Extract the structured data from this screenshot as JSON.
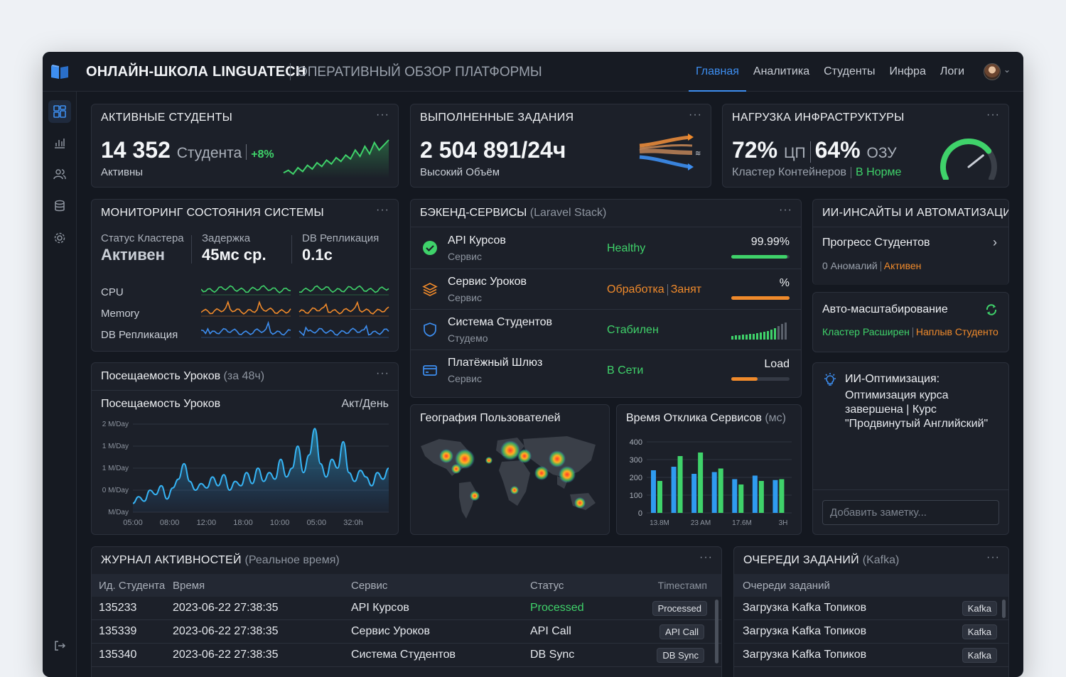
{
  "header": {
    "title": "ОНЛАЙН-ШКОЛА LINGUATECH",
    "subtitle": "ОПЕРАТИВНЫЙ ОБЗОР ПЛАТФОРМЫ",
    "nav": [
      "Главная",
      "Аналитика",
      "Студенты",
      "Инфра",
      "Логи"
    ],
    "active_nav": "Главная"
  },
  "sidebar": {
    "icons": [
      "dashboard-icon",
      "bar-chart-icon",
      "users-icon",
      "database-icon",
      "gear-icon",
      "logout-icon"
    ]
  },
  "kpi_students": {
    "title": "АКТИВНЫЕ СТУДЕНТЫ",
    "value": "14 352",
    "unit": "Студента",
    "change": "+8%",
    "status": "Активны",
    "sparkline": [
      12,
      14,
      11,
      16,
      13,
      18,
      15,
      20,
      17,
      22,
      19,
      24,
      21,
      26,
      23,
      30,
      25,
      33,
      27,
      36,
      30,
      34,
      38
    ]
  },
  "kpi_tasks": {
    "title": "ВЫПОЛНЕННЫЕ ЗАДАНИЯ",
    "value": "2 504 891/24ч",
    "status": "Высокий Объём"
  },
  "kpi_infra": {
    "title": "НАГРУЗКА ИНФРАСТРУКТУРЫ",
    "cpu_value": "72%",
    "cpu_unit": "ЦП",
    "ram_value": "64%",
    "ram_unit": "ОЗУ",
    "cluster": "Кластер Контейнеров",
    "status": "В Норме",
    "gauge_level": 0.72
  },
  "monitor": {
    "title": "МОНИТОРИНГ СОСТОЯНИЯ СИСТЕМЫ",
    "stats": [
      {
        "label": "Статус Кластера",
        "value": "Активен"
      },
      {
        "label": "Задержка",
        "value": "45мс ср."
      },
      {
        "label": "DB Репликация",
        "value": "0.1с"
      }
    ],
    "rows": [
      "CPU",
      "Memory",
      "DB Репликация"
    ]
  },
  "backend": {
    "title": "БЭКЕНД-СЕРВИСЫ",
    "title_note": "(Laravel Stack)",
    "services": [
      {
        "name": "API Курсов",
        "sub": "Сервис",
        "status": "Healthy",
        "value": "99.99%",
        "level": 0.96,
        "color": "#3fd26a"
      },
      {
        "name": "Сервис Уроков",
        "sub": "Сервис",
        "status_a": "Обработка",
        "status_b": "Занят",
        "value": "%",
        "level": 1.0,
        "color": "#f08a2b"
      },
      {
        "name": "Система Студентов",
        "sub": "Студемо",
        "status": "Стабилен",
        "value": "",
        "level": 0.0,
        "color": "#3fd26a"
      },
      {
        "name": "Платёжный Шлюз",
        "sub": "Сервис",
        "status": "В Сети",
        "value": "Load",
        "level": 0.45,
        "color": "#f08a2b"
      }
    ]
  },
  "ai": {
    "title": "ИИ-ИНСАЙТЫ И АВТОМАТИЗАЦИ",
    "progress_title": "Прогресс Студентов",
    "anomalies": "0 Аномалий",
    "anomalies_status": "Активен",
    "autoscale_title": "Авто-масштабирование",
    "autoscale_a": "Кластер Расширен",
    "autoscale_b": "Наплыв Студенто",
    "opt_title": "ИИ-Оптимизация:",
    "opt_text": "Оптимизация курса завершена | Курс \"Продвинутый Английский\"",
    "note_placeholder": "Добавить заметку..."
  },
  "attendance": {
    "title": "Посещаемость Уроков",
    "title_note": "(за 48ч)",
    "inner_title": "Посещаемость Уроков",
    "unit_label": "Акт/День"
  },
  "geo": {
    "title": "География Пользователей"
  },
  "response": {
    "title": "Время Отклика Сервисов",
    "title_note": "(мс)"
  },
  "activity": {
    "title": "ЖУРНАЛ АКТИВНОСТЕЙ",
    "title_note": "(Реальное время)",
    "columns": [
      "Ид. Студента",
      "Время",
      "Сервис",
      "Статус",
      "Тimестамп"
    ],
    "rows": [
      {
        "id": "135233",
        "time": "2023-06-22 27:38:35",
        "service": "API Курсов",
        "status": "Processed",
        "badge": "Processed",
        "status_color": "#3fd26a"
      },
      {
        "id": "135339",
        "time": "2023-06-22 27:38:35",
        "service": "Сервис Уроков",
        "status": "API Call",
        "badge": "API Call",
        "status_color": "#3d8ef0"
      },
      {
        "id": "135340",
        "time": "2023-06-22 27:38:35",
        "service": "Система Студентов",
        "status": "DB Sync",
        "badge": "DB Sync",
        "status_color": "#3d8ef0"
      }
    ]
  },
  "queues": {
    "title": "ОЧЕРЕДИ ЗАДАНИЙ",
    "title_note": "(Kafka)",
    "column": "Очереди заданий",
    "rows": [
      {
        "name": "Загрузка Kafka Топиков",
        "badge": "Kafka"
      },
      {
        "name": "Загрузка Kafka Топиков",
        "badge": "Kafka"
      },
      {
        "name": "Загрузка Kafka Топиков",
        "badge": "Kafka"
      }
    ]
  },
  "chart_data": [
    {
      "type": "area",
      "title": "Посещаемость Уроков",
      "ylabel": "Акт/День",
      "x_ticks": [
        "05:00",
        "08:00",
        "12:00",
        "18:00",
        "10:00",
        "05:00",
        "32:0h"
      ],
      "y_ticks": [
        "2 M/Day",
        "1 M/Day",
        "1 M/Day",
        "0 M/Day",
        "M/Day"
      ],
      "values": [
        0.2,
        0.35,
        0.25,
        0.5,
        0.4,
        0.6,
        0.3,
        0.55,
        0.75,
        1.1,
        0.7,
        0.5,
        0.65,
        0.55,
        0.8,
        0.6,
        0.85,
        0.5,
        0.7,
        0.6,
        0.9,
        0.65,
        1.0,
        0.7,
        0.9,
        0.75,
        1.2,
        0.8,
        1.0,
        1.5,
        0.9,
        1.3,
        1.9,
        1.1,
        0.8,
        1.2,
        1.0,
        1.6,
        0.9,
        0.7,
        0.95,
        0.8,
        0.6,
        0.9,
        0.75,
        1.0
      ]
    },
    {
      "type": "bar",
      "title": "Время Отклика Сервисов (мс)",
      "x_ticks": [
        "13.8M",
        "23 AM",
        "17.6M",
        "3H"
      ],
      "y_ticks": [
        "400",
        "300",
        "200",
        "100",
        "0"
      ],
      "ylim": [
        0,
        400
      ],
      "series": [
        {
          "color": "#2f9bf0",
          "values": [
            240,
            260,
            220,
            230,
            190,
            210,
            185
          ]
        },
        {
          "color": "#3fd26a",
          "values": [
            180,
            320,
            340,
            250,
            160,
            180,
            190
          ]
        }
      ]
    }
  ]
}
